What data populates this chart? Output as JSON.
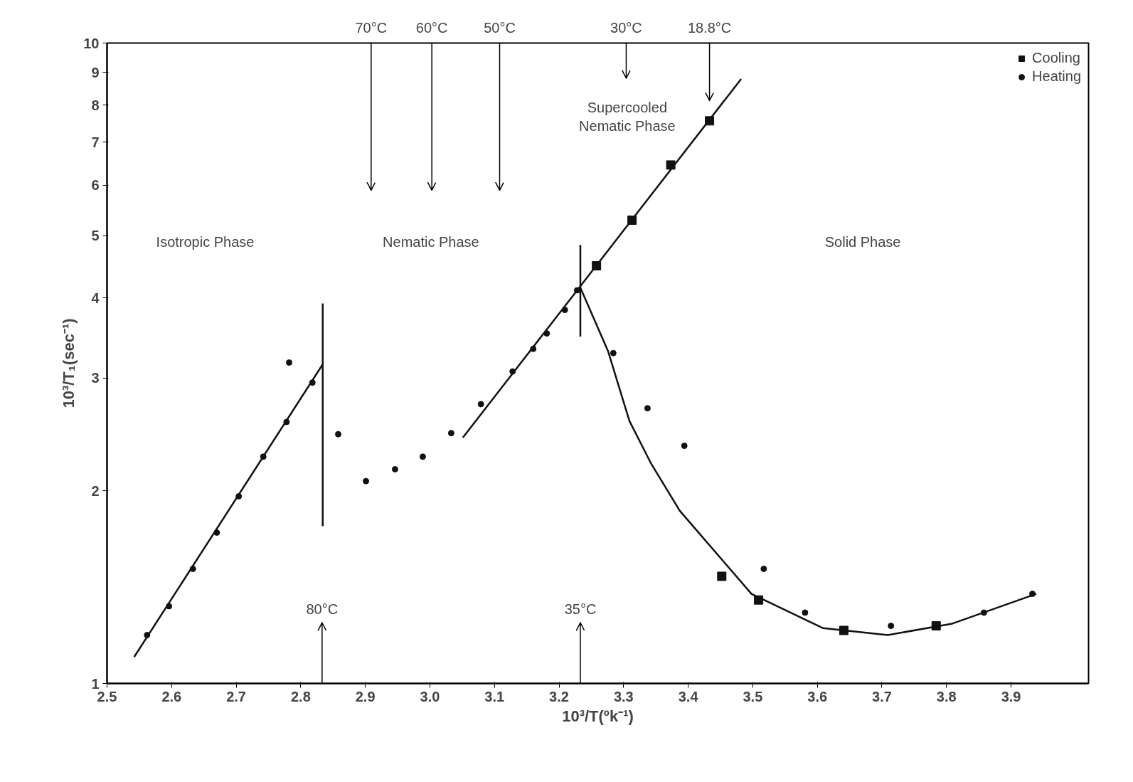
{
  "chart_data": {
    "type": "scatter",
    "xlabel": "10³/T(ºk⁻¹)",
    "ylabel": "10³/T₁(sec⁻¹)",
    "log": "y",
    "xlim": [
      2.5,
      4.02
    ],
    "ylim": [
      1,
      10
    ],
    "xticks": [
      2.5,
      2.6,
      2.7,
      2.8,
      {
        "value": 2.9,
        "label": "2.9"
      },
      {
        "value": 3.0,
        "label": "3.0"
      },
      3.1,
      3.2,
      3.3,
      3.4,
      3.5,
      3.6,
      3.7,
      3.8,
      3.9
    ],
    "yticks": [
      1,
      2,
      3,
      4,
      5,
      6,
      7,
      8,
      9,
      10
    ],
    "grid": false,
    "legend": "top right",
    "series": [
      {
        "name": "Cooling",
        "marker": "square",
        "color": "#111111",
        "x": [
          3.258,
          3.313,
          3.373,
          3.433,
          3.452,
          3.509,
          3.641,
          3.784
        ],
        "values": [
          4.49,
          5.29,
          6.45,
          7.56,
          1.47,
          1.35,
          1.21,
          1.23
        ]
      },
      {
        "name": "Heating",
        "marker": "circle",
        "color": "#111111",
        "x": [
          2.562,
          2.596,
          2.633,
          2.67,
          2.704,
          2.742,
          2.778,
          2.782,
          2.818,
          2.858,
          2.901,
          2.946,
          2.989,
          3.033,
          3.079,
          3.128,
          3.16,
          3.181,
          3.209,
          3.228,
          3.284,
          3.337,
          3.394,
          3.517,
          3.581,
          3.714,
          3.858,
          3.933
        ],
        "values": [
          1.19,
          1.32,
          1.51,
          1.72,
          1.96,
          2.26,
          2.56,
          3.17,
          2.95,
          2.45,
          2.07,
          2.16,
          2.26,
          2.46,
          2.73,
          3.07,
          3.33,
          3.52,
          3.83,
          4.11,
          3.28,
          2.69,
          2.35,
          1.51,
          1.29,
          1.23,
          1.29,
          1.38
        ]
      },
      {
        "type": "line",
        "color": "#111111",
        "x": [
          2.542,
          2.834
        ],
        "values": [
          1.1,
          3.15
        ]
      },
      {
        "type": "line",
        "color": "#111111",
        "x": [
          3.051,
          3.482
        ],
        "values": [
          2.42,
          8.79
        ]
      },
      {
        "type": "line",
        "color": "#111111",
        "x": [
          3.233,
          3.276,
          3.309,
          3.342,
          3.387,
          3.498,
          3.609,
          3.709,
          3.809,
          3.939
        ],
        "values": [
          4.15,
          3.3,
          2.57,
          2.21,
          1.86,
          1.38,
          1.22,
          1.19,
          1.24,
          1.38
        ]
      },
      {
        "type": "line",
        "color": "#111111",
        "x": [
          2.834,
          2.834
        ],
        "values": [
          1.76,
          3.92
        ]
      },
      {
        "type": "line",
        "color": "#111111",
        "x": [
          3.233,
          3.233
        ],
        "values": [
          3.48,
          4.84
        ]
      }
    ],
    "annotations": [
      "Isotropic Phase",
      "Nematic Phase",
      "Solid Phase",
      "Supercooled\nNematic Phase"
    ],
    "ref_lines": [
      {
        "axis": "x",
        "value": 2.909,
        "label": "70°C"
      },
      {
        "axis": "x",
        "value": 3.003,
        "label": "60°C"
      },
      {
        "axis": "x",
        "value": 3.108,
        "label": "50°C"
      },
      {
        "axis": "x",
        "value": 3.304,
        "label": "30°C"
      },
      {
        "axis": "x",
        "value": 3.433,
        "label": "18.8°C"
      },
      {
        "axis": "x",
        "value": 2.833,
        "label": "80°C"
      },
      {
        "axis": "x",
        "value": 3.233,
        "label": "35°C"
      }
    ]
  }
}
